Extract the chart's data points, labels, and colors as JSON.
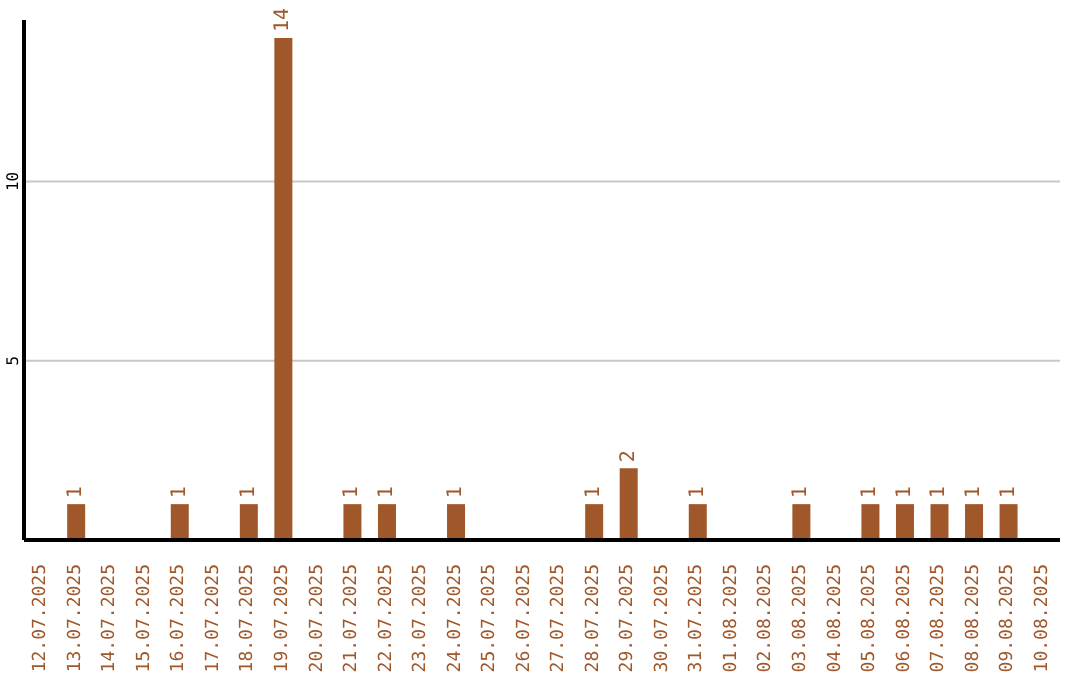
{
  "chart_data": {
    "type": "bar",
    "categories": [
      "12.07.2025",
      "13.07.2025",
      "14.07.2025",
      "15.07.2025",
      "16.07.2025",
      "17.07.2025",
      "18.07.2025",
      "19.07.2025",
      "20.07.2025",
      "21.07.2025",
      "22.07.2025",
      "23.07.2025",
      "24.07.2025",
      "25.07.2025",
      "26.07.2025",
      "27.07.2025",
      "28.07.2025",
      "29.07.2025",
      "30.07.2025",
      "31.07.2025",
      "01.08.2025",
      "02.08.2025",
      "03.08.2025",
      "04.08.2025",
      "05.08.2025",
      "06.08.2025",
      "07.08.2025",
      "08.08.2025",
      "09.08.2025",
      "10.08.2025"
    ],
    "values": [
      0,
      1,
      0,
      0,
      1,
      0,
      1,
      14,
      0,
      1,
      1,
      0,
      1,
      0,
      0,
      0,
      1,
      2,
      0,
      1,
      0,
      0,
      1,
      0,
      1,
      1,
      1,
      1,
      1,
      0
    ],
    "value_labels": [
      null,
      "1",
      null,
      null,
      "1",
      null,
      "1",
      "14",
      null,
      "1",
      "1",
      null,
      "1",
      null,
      null,
      null,
      "1",
      "2",
      null,
      "1",
      null,
      null,
      "1",
      null,
      "1",
      "1",
      "1",
      "1",
      "1",
      null
    ],
    "color": "#a0572a",
    "ylim": [
      0,
      14.5
    ],
    "yticks": [
      5,
      10
    ],
    "grid": "y"
  }
}
